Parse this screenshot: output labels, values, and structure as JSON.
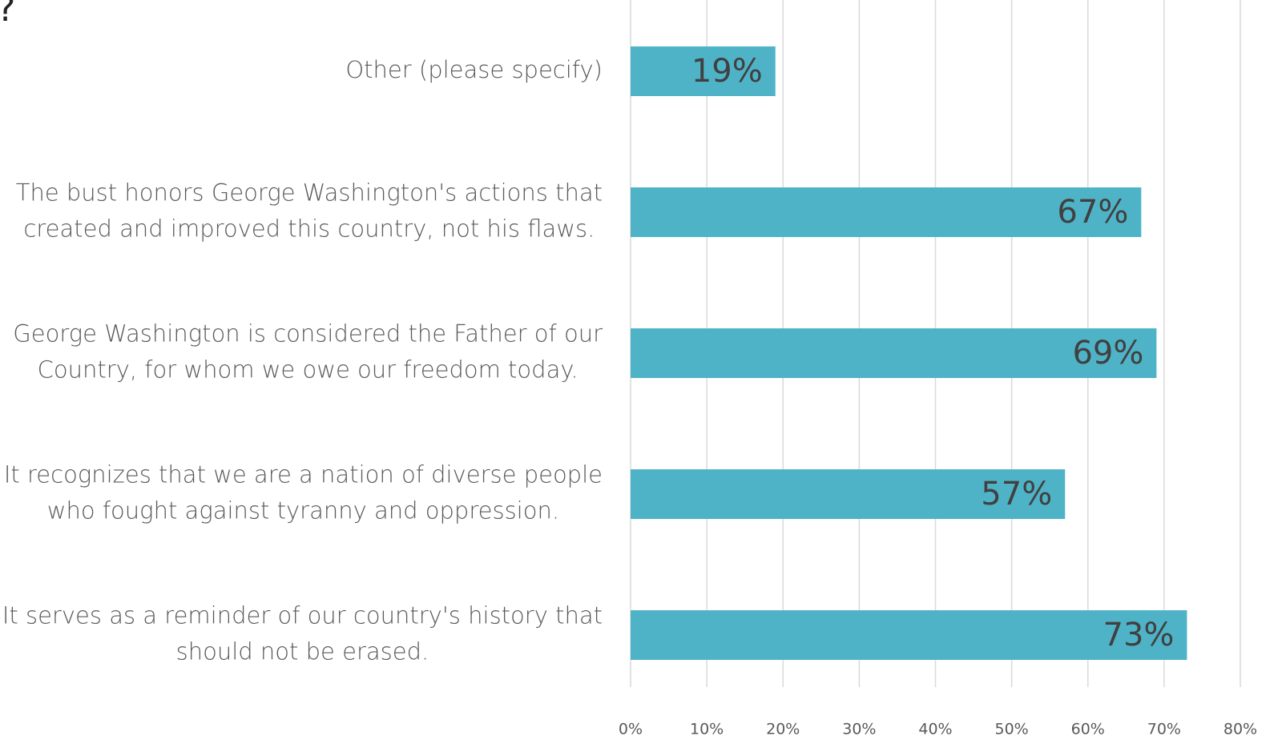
{
  "chart_data": {
    "type": "hbar",
    "title": "?",
    "categories": [
      "Other (please specify)",
      "The bust honors George Washington's actions that\ncreated and improved this country, not his flaws.",
      "George Washington is considered the Father of our\nCountry, for whom we owe our freedom today.",
      "It recognizes that we are a nation of diverse people\nwho fought against tyranny and oppression.",
      "It serves as a reminder of our country's history that\nshould not be erased."
    ],
    "values": [
      19,
      67,
      69,
      57,
      73
    ],
    "value_labels": [
      "19%",
      "67%",
      "69%",
      "57%",
      "73%"
    ],
    "color": "#4fb3c8",
    "xlim": [
      0,
      80
    ],
    "xticks": [
      {
        "value": 0,
        "label": "0%"
      },
      {
        "value": 10,
        "label": "10%"
      },
      {
        "value": 20,
        "label": "20%"
      },
      {
        "value": 30,
        "label": "30%"
      },
      {
        "value": 40,
        "label": "40%"
      },
      {
        "value": 50,
        "label": "50%"
      },
      {
        "value": 60,
        "label": "60%"
      },
      {
        "value": 70,
        "label": "70%"
      },
      {
        "value": 80,
        "label": "80%"
      }
    ],
    "grid": true
  }
}
